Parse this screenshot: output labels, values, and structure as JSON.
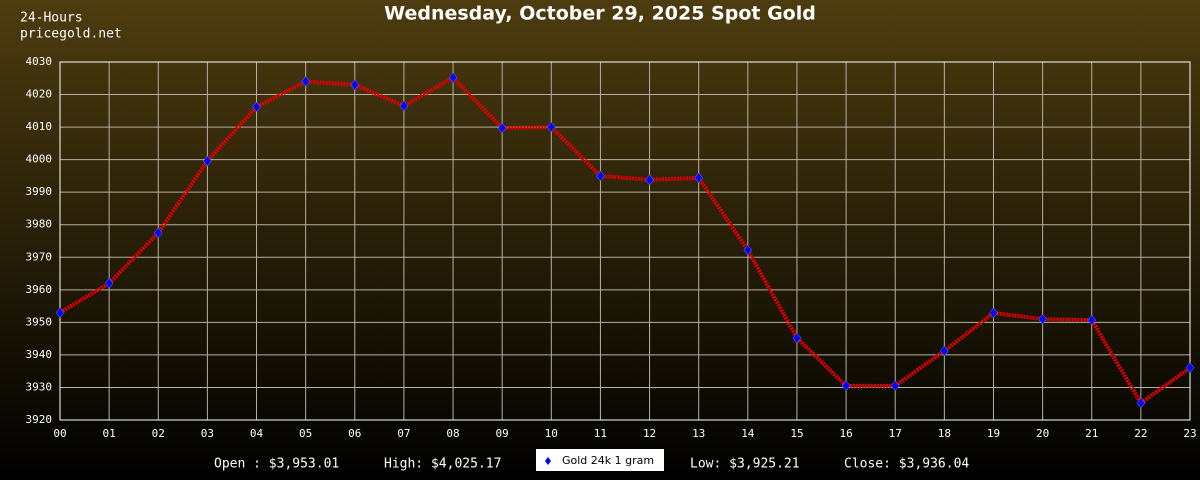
{
  "chart_data": {
    "type": "line",
    "title": "Wednesday, October 29, 2025 Spot Gold",
    "period_label": "24-Hours",
    "source": "pricegold.net",
    "categories": [
      "00",
      "01",
      "02",
      "03",
      "04",
      "05",
      "06",
      "07",
      "08",
      "09",
      "10",
      "11",
      "12",
      "13",
      "14",
      "15",
      "16",
      "17",
      "18",
      "19",
      "20",
      "21",
      "22",
      "23"
    ],
    "series": [
      {
        "name": "Gold 24k 1 gram",
        "color": "#e00000",
        "marker_color": "#0000ff",
        "values": [
          3953.01,
          3962,
          3977.5,
          3999.6,
          4016.2,
          4024,
          4023,
          4016.5,
          4025.17,
          4009.7,
          4010,
          3995,
          3993.8,
          3994.4,
          3972.2,
          3945.2,
          3930.5,
          3930.5,
          3941.2,
          3952.9,
          3951,
          3950.7,
          3925.21,
          3936.04
        ]
      }
    ],
    "ylim": [
      3920,
      4030
    ],
    "yticks": [
      3920,
      3930,
      3940,
      3950,
      3960,
      3970,
      3980,
      3990,
      4000,
      4010,
      4020,
      4030
    ],
    "grid": true,
    "stats_left": [
      "Open : $3,953.01",
      "High: $4,025.17"
    ],
    "stats_right": [
      "Low: $3,925.21",
      "Close: $3,936.04"
    ]
  }
}
